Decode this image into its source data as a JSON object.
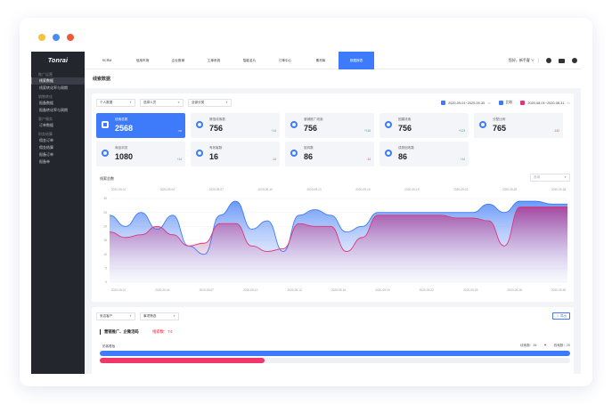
{
  "window": {
    "dots": [
      "#f5c342",
      "#4a8cf7",
      "#f0553d"
    ]
  },
  "sidebar": {
    "logo": "Tonrai",
    "groups": [
      {
        "title": "推广运营",
        "items": [
          "线索数据",
          "线索转化率与周期"
        ]
      },
      {
        "title": "销售转化",
        "items": [
          "报备数据",
          "报备转化率与周期"
        ]
      },
      {
        "title": "客户服务",
        "items": [
          "订单数据"
        ]
      },
      {
        "title": "财务结算",
        "items": [
          "佣金订单",
          "佣金结算",
          "报备订单",
          "报备单"
        ]
      }
    ],
    "active_item": "线索数据"
  },
  "topbar": {
    "nav": [
      "SCRM",
      "信用市场",
      "企业账单",
      "工单系统",
      "智能名片",
      "订单中心",
      "素材库",
      "数据报表"
    ],
    "active_nav": "数据报表",
    "user": "您好，新手客 ∨"
  },
  "breadcrumb": "线索数据",
  "filters": {
    "selects": [
      {
        "value": "个人数据"
      },
      {
        "value": "选择人员"
      },
      {
        "value": "全部分类"
      }
    ],
    "range_current": "2020-09-01~2020-09-30",
    "compare_label": "比较",
    "range_compare": "2020-08-01~2020-08-31"
  },
  "cards": [
    {
      "label": "线索总数",
      "value": "2568",
      "delta": "-nz",
      "active": true,
      "delta_color": "#ffffff"
    },
    {
      "label": "微信线索数",
      "value": "756",
      "delta": "+14",
      "active": false,
      "delta_color": "#21b36b"
    },
    {
      "label": "营销推广线索",
      "value": "756",
      "delta": "+116",
      "active": false,
      "delta_color": "#21b36b"
    },
    {
      "label": "团建线索",
      "value": "756",
      "delta": "+123",
      "active": false,
      "delta_color": "#21b36b"
    },
    {
      "label": "分配比例",
      "value": "765",
      "delta": "-142",
      "active": false,
      "delta_color": "#e84a3a"
    },
    {
      "label": "商品浏览",
      "value": "1080",
      "delta": "+14",
      "active": false,
      "delta_color": "#21b36b"
    },
    {
      "label": "有效客数",
      "value": "16",
      "delta": "-14",
      "active": false,
      "delta_color": "#e84a3a"
    },
    {
      "label": "放弃数",
      "value": "86",
      "delta": "-14",
      "active": false,
      "delta_color": "#e84a3a"
    },
    {
      "label": "成熟回收数",
      "value": "86",
      "delta": "+14",
      "active": false,
      "delta_color": "#21b36b"
    }
  ],
  "chart": {
    "title": "线索总数",
    "select_placeholder": "选填"
  },
  "chart_data": {
    "type": "area",
    "x_top": [
      "2020-09-01",
      "2020-09-04",
      "2020-09-07",
      "2020-09-10",
      "2020-09-13",
      "2020-09-16",
      "2020-09-19",
      "2020-09-22",
      "2020-09-25",
      "2020-09-28"
    ],
    "x_bottom": [
      "2020-09-01",
      "2020-09-04",
      "2020-09-07",
      "2020-09-10",
      "2020-09-13",
      "2020-09-16",
      "2020-09-19",
      "2020-09-22",
      "2020-09-25",
      "2020-09-28",
      "2020-09-30"
    ],
    "ylim": [
      0,
      30
    ],
    "yticks": [
      0,
      5,
      10,
      15,
      20,
      25,
      30
    ],
    "series": [
      {
        "color": "#3d7bfa",
        "values": [
          24,
          20,
          25,
          19,
          24,
          13,
          10,
          24,
          29,
          19,
          22,
          11,
          24,
          26,
          24,
          18,
          20,
          25,
          25,
          25,
          25,
          25,
          25,
          25,
          28,
          25,
          29,
          29,
          28,
          28
        ]
      },
      {
        "color": "#e0357a",
        "values": [
          18,
          16,
          17,
          20,
          17,
          13,
          14,
          21,
          21,
          13,
          11,
          12,
          21,
          20,
          20,
          11,
          16,
          24,
          24,
          24,
          24,
          24,
          23,
          23,
          22,
          13,
          27,
          27,
          27,
          27
        ]
      }
    ]
  },
  "lower": {
    "selects": [
      {
        "value": "来店客户"
      },
      {
        "value": "事项筛选"
      }
    ],
    "export_label": "导出",
    "section_title": "营销推广、企微活码",
    "section_count": "线索数：74",
    "row_label": "拓客看板",
    "stat_a": "线索数：26",
    "stat_b": "线索数：20",
    "bars": [
      {
        "percent": 100,
        "color": "#3d7bfa"
      },
      {
        "percent": 35,
        "color": "#f0366b"
      }
    ]
  }
}
